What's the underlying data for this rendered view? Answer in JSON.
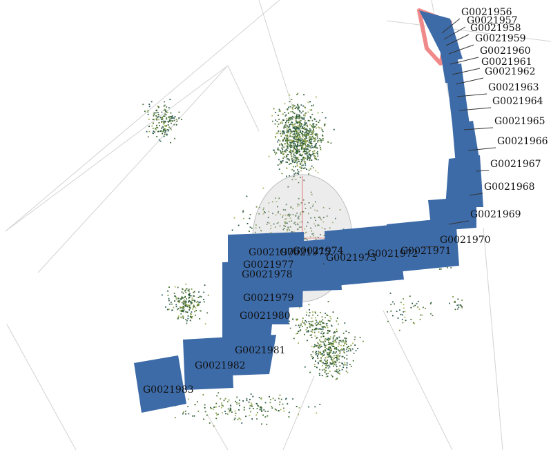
{
  "viewer": {
    "colors": {
      "background": "#ffffff",
      "grid_line": "#d2d2d2",
      "camera_fill": "#3d6ba8",
      "camera_selected": "#f08a8a",
      "sphere_fill": "#c8c8c8",
      "sphere_axis": "#e06060",
      "point_colors": [
        "#1f4d33",
        "#3e6b2a",
        "#6f8f3a",
        "#a3b35a",
        "#2d5f5a",
        "#52734a"
      ]
    },
    "camera_labels": [
      "G0021956",
      "G0021957",
      "G0021958",
      "G0021959",
      "G0021960",
      "G0021961",
      "G0021962",
      "G0021963",
      "G0021964",
      "G0021965",
      "G0021966",
      "G0021967",
      "G0021968",
      "G0021969",
      "G0021970",
      "G0021971",
      "G0021972",
      "G0021973",
      "G0021974",
      "G0021975",
      "G0021976",
      "G0021977",
      "G0021978",
      "G0021979",
      "G0021980",
      "G0021981",
      "G0021982",
      "G0021983"
    ]
  }
}
